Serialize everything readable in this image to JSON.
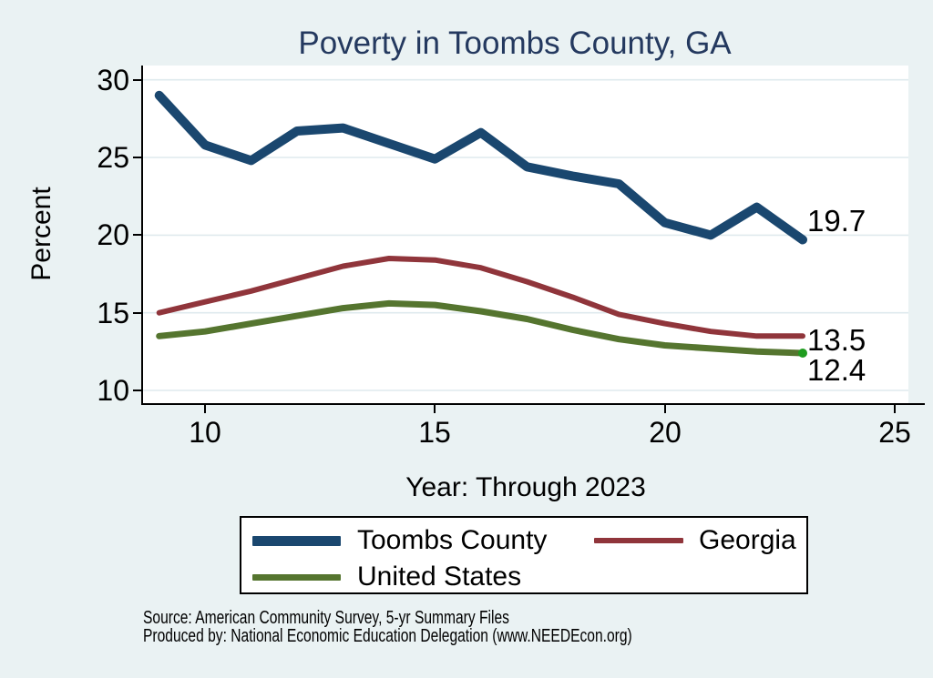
{
  "title": "Poverty in Toombs County, GA",
  "axes": {
    "y_label": "Percent",
    "x_label": "Year: Through 2023",
    "y_ticks": [
      30,
      25,
      20,
      15,
      10
    ],
    "x_ticks": [
      10,
      15,
      20,
      25
    ]
  },
  "legend": {
    "items": [
      {
        "label": "Toombs County",
        "color": "#1a476f",
        "thickness": 11
      },
      {
        "label": "Georgia",
        "color": "#90353b",
        "thickness": 6
      },
      {
        "label": "United States",
        "color": "#55752f",
        "thickness": 7
      }
    ]
  },
  "source": {
    "line1": "Source: American Community Survey, 5-yr Summary Files",
    "line2": "Produced by: National Economic Education Delegation (www.NEEDEcon.org)"
  },
  "colors": {
    "background": "#eaf2f3",
    "plot_background": "#ffffff",
    "grid": "#dfeaee",
    "axis": "#000000",
    "title_text": "#24395f",
    "end_marker_green": "#1f9c1f"
  },
  "chart_data": {
    "type": "line",
    "title": "Poverty in Toombs County, GA",
    "xlabel": "Year: Through 2023",
    "ylabel": "Percent",
    "x": [
      9,
      10,
      11,
      12,
      13,
      14,
      15,
      16,
      17,
      18,
      19,
      20,
      21,
      22,
      23
    ],
    "series": [
      {
        "name": "Toombs County",
        "color": "#1a476f",
        "line_width": 10,
        "values": [
          29.0,
          25.8,
          24.8,
          26.7,
          26.9,
          25.9,
          24.9,
          26.6,
          24.4,
          23.8,
          23.3,
          20.8,
          20.0,
          21.8,
          19.7
        ],
        "end_label": "19.7"
      },
      {
        "name": "Georgia",
        "color": "#90353b",
        "line_width": 6,
        "values": [
          15.0,
          15.7,
          16.4,
          17.2,
          18.0,
          18.5,
          18.4,
          17.9,
          17.0,
          16.0,
          14.9,
          14.3,
          13.8,
          13.5,
          13.5
        ],
        "end_label": "13.5"
      },
      {
        "name": "United States",
        "color": "#55752f",
        "line_width": 7,
        "values": [
          13.5,
          13.8,
          14.3,
          14.8,
          15.3,
          15.6,
          15.5,
          15.1,
          14.6,
          13.9,
          13.3,
          12.9,
          12.7,
          12.5,
          12.4
        ],
        "end_label": "12.4",
        "end_marker": {
          "color": "#1f9c1f",
          "radius": 5
        }
      }
    ],
    "xlim": [
      8.65,
      25.3
    ],
    "ylim": [
      9.18,
      30.92
    ],
    "grid": "horizontal",
    "legend_position": "bottom"
  }
}
